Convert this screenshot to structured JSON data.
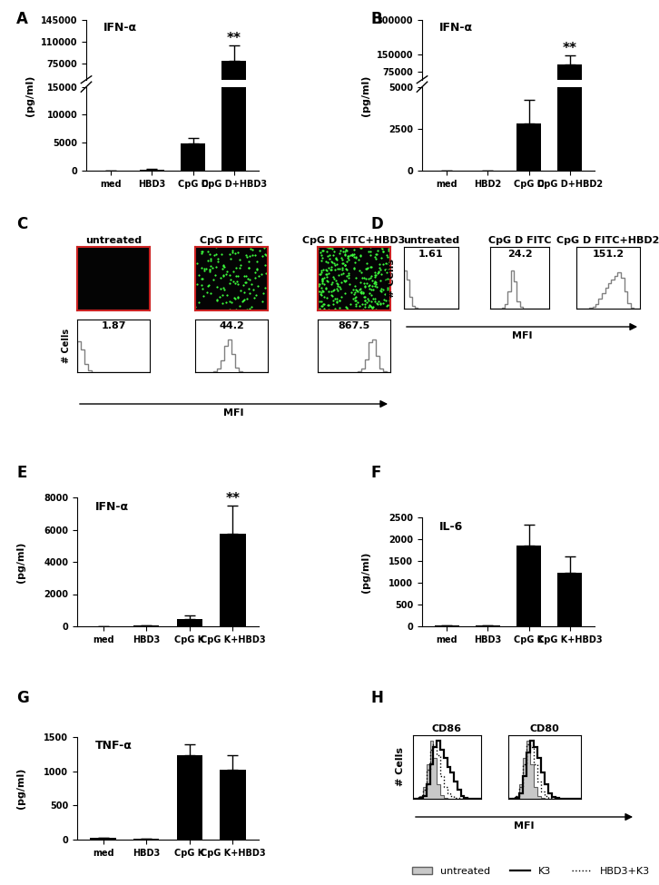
{
  "chart_data": [
    {
      "panel": "A",
      "type": "bar",
      "title": "IFN-α",
      "y_label": "(pg/ml)",
      "categories": [
        "med",
        "HBD3",
        "CpG D",
        "CpG D+HBD3"
      ],
      "values": [
        0,
        200,
        4800,
        80000
      ],
      "errors": [
        0,
        100,
        1100,
        25000
      ],
      "significance": [
        null,
        null,
        null,
        "**"
      ],
      "color": "#000000",
      "segments": [
        {
          "ylim": [
            0,
            15000
          ],
          "yticks": [
            0,
            5000,
            10000,
            15000
          ]
        },
        {
          "ylim": [
            50000,
            145000
          ],
          "yticks": [
            75000,
            110000,
            145000
          ]
        }
      ]
    },
    {
      "panel": "B",
      "type": "bar",
      "title": "IFN-α",
      "y_label": "(pg/ml)",
      "categories": [
        "med",
        "HBD2",
        "CpG D",
        "CpG D+HBD2"
      ],
      "values": [
        0,
        0,
        2800,
        105000
      ],
      "errors": [
        0,
        0,
        1400,
        40000
      ],
      "significance": [
        null,
        null,
        null,
        "**"
      ],
      "color": "#000000",
      "segments": [
        {
          "ylim": [
            0,
            5000
          ],
          "yticks": [
            0,
            2500,
            5000
          ]
        },
        {
          "ylim": [
            40000,
            300000
          ],
          "yticks": [
            75000,
            150000,
            300000
          ]
        }
      ]
    },
    {
      "panel": "C",
      "type": "image_histogram",
      "y_label": "# Cells",
      "x_label": "MFI",
      "log": "x",
      "xlim": [
        1,
        10000
      ],
      "ylim": [
        0,
        160
      ],
      "tick_labels": false,
      "bins": [
        1,
        1.58,
        2.51,
        3.98,
        6.31,
        10,
        15.8,
        25.1,
        39.8,
        63.1,
        100,
        158,
        251,
        398,
        631,
        1000,
        1585,
        2512,
        3981,
        6310,
        10000
      ],
      "plots": [
        {
          "title": "untreated",
          "annotation": "1.87",
          "series": [
            {
              "color": "#808080",
              "line_style": "solid",
              "type": "line",
              "values": [
                95,
                70,
                25,
                6,
                1,
                0,
                0,
                0,
                0,
                0,
                0,
                0,
                0,
                0,
                0,
                0,
                0,
                0,
                0,
                0
              ]
            }
          ]
        },
        {
          "title": "CpG D FITC",
          "annotation": "44.2",
          "series": [
            {
              "color": "#808080",
              "line_style": "solid",
              "type": "line",
              "values": [
                0,
                0,
                0,
                0,
                1,
                3,
                10,
                35,
                80,
                100,
                55,
                15,
                3,
                0,
                0,
                0,
                0,
                0,
                0,
                0
              ]
            }
          ]
        },
        {
          "title": "CpG D FITC+HBD3",
          "annotation": "867.5",
          "series": [
            {
              "color": "#808080",
              "line_style": "solid",
              "type": "line",
              "values": [
                0,
                0,
                0,
                0,
                0,
                0,
                0,
                0,
                0,
                0,
                1,
                3,
                10,
                40,
                90,
                100,
                50,
                12,
                2,
                0
              ]
            }
          ]
        }
      ]
    },
    {
      "panel": "D",
      "type": "histogram",
      "y_label": "# Cells",
      "x_label": "MFI",
      "log": "x",
      "xlim": [
        1,
        10000
      ],
      "ylim": [
        0,
        160
      ],
      "tick_labels": false,
      "bins": [
        1,
        1.58,
        2.51,
        3.98,
        6.31,
        10,
        15.8,
        25.1,
        39.8,
        63.1,
        100,
        158,
        251,
        398,
        631,
        1000,
        1585,
        2512,
        3981,
        6310,
        10000
      ],
      "plots": [
        {
          "title": "untreated",
          "annotation": "1.61",
          "series": [
            {
              "color": "#808080",
              "line_style": "solid",
              "type": "line",
              "values": [
                100,
                75,
                30,
                8,
                2,
                0,
                0,
                0,
                0,
                0,
                0,
                0,
                0,
                0,
                0,
                0,
                0,
                0,
                0,
                0
              ]
            }
          ]
        },
        {
          "title": "CpG D FITC",
          "annotation": "24.2",
          "series": [
            {
              "color": "#808080",
              "line_style": "solid",
              "type": "line",
              "values": [
                0,
                0,
                0,
                1,
                3,
                12,
                45,
                100,
                70,
                20,
                4,
                1,
                0,
                0,
                0,
                0,
                0,
                0,
                0,
                0
              ]
            }
          ]
        },
        {
          "title": "CpG D FITC+HBD2",
          "annotation": "151.2",
          "series": [
            {
              "color": "#808080",
              "line_style": "solid",
              "type": "line",
              "values": [
                0,
                0,
                0,
                1,
                2,
                5,
                12,
                25,
                40,
                55,
                65,
                75,
                85,
                95,
                80,
                45,
                15,
                3,
                0,
                0
              ]
            }
          ]
        }
      ]
    },
    {
      "panel": "E",
      "type": "bar",
      "title": "IFN-α",
      "y_label": "(pg/ml)",
      "categories": [
        "med",
        "HBD3",
        "CpG K",
        "CpG K+HBD3"
      ],
      "values": [
        0,
        30,
        450,
        5750
      ],
      "errors": [
        0,
        10,
        200,
        1750
      ],
      "significance": [
        null,
        null,
        null,
        "**"
      ],
      "color": "#000000",
      "ylim": [
        0,
        8000
      ],
      "yticks": [
        0,
        2000,
        4000,
        6000,
        8000
      ]
    },
    {
      "panel": "F",
      "type": "bar",
      "title": "IL-6",
      "y_label": "(pg/ml)",
      "categories": [
        "med",
        "HBD3",
        "CpG K",
        "CpG K+HBD3"
      ],
      "values": [
        20,
        20,
        1850,
        1230
      ],
      "errors": [
        0,
        0,
        480,
        380
      ],
      "color": "#000000",
      "ylim": [
        0,
        2500
      ],
      "yticks": [
        0,
        500,
        1000,
        1500,
        2000,
        2500
      ]
    },
    {
      "panel": "G",
      "type": "bar",
      "title": "TNF-α",
      "y_label": "(pg/ml)",
      "categories": [
        "med",
        "HBD3",
        "CpG K",
        "CpG K+HBD3"
      ],
      "values": [
        20,
        10,
        1230,
        1020
      ],
      "errors": [
        0,
        0,
        160,
        220
      ],
      "color": "#000000",
      "ylim": [
        0,
        1500
      ],
      "yticks": [
        0,
        500,
        1000,
        1500
      ]
    },
    {
      "panel": "H",
      "type": "histogram",
      "y_label": "# Cells",
      "x_label": "MFI",
      "log": "x",
      "xlim": [
        1,
        10000
      ],
      "ylim": [
        0,
        110
      ],
      "tick_labels": false,
      "legend": "lower right",
      "bins": [
        1,
        1.58,
        2.51,
        3.98,
        6.31,
        10,
        15.8,
        25.1,
        39.8,
        63.1,
        100,
        158,
        251,
        398,
        631,
        1000,
        1585,
        2512,
        3981,
        6310,
        10000
      ],
      "plots": [
        {
          "title": "CD86",
          "series": [
            {
              "name": "untreated",
              "color": "#c8c8c8",
              "type": "area",
              "line_style": "solid",
              "values": [
                0,
                1,
                4,
                20,
                60,
                100,
                70,
                25,
                6,
                1,
                0,
                0,
                0,
                0,
                0,
                0,
                0,
                0,
                0,
                0
              ]
            },
            {
              "name": "K3",
              "color": "#000000",
              "type": "line",
              "line_style": "solid",
              "values": [
                0,
                0,
                1,
                5,
                25,
                60,
                90,
                100,
                85,
                70,
                55,
                45,
                30,
                15,
                5,
                1,
                0,
                0,
                0,
                0
              ]
            },
            {
              "name": "HBD3+K3",
              "color": "#000000",
              "type": "line",
              "line_style": "dotted",
              "values": [
                0,
                1,
                3,
                15,
                50,
                85,
                95,
                75,
                40,
                20,
                10,
                5,
                2,
                1,
                0,
                0,
                0,
                0,
                0,
                0
              ]
            }
          ]
        },
        {
          "title": "CD80",
          "series": [
            {
              "name": "untreated",
              "color": "#c8c8c8",
              "type": "area",
              "line_style": "solid",
              "values": [
                0,
                1,
                5,
                25,
                70,
                100,
                60,
                20,
                5,
                1,
                0,
                0,
                0,
                0,
                0,
                0,
                0,
                0,
                0,
                0
              ]
            },
            {
              "name": "K3",
              "color": "#000000",
              "type": "line",
              "line_style": "solid",
              "values": [
                0,
                0,
                2,
                10,
                40,
                80,
                100,
                90,
                70,
                45,
                25,
                10,
                3,
                1,
                0,
                0,
                0,
                0,
                0,
                0
              ]
            },
            {
              "name": "HBD3+K3",
              "color": "#000000",
              "type": "line",
              "line_style": "dotted",
              "values": [
                0,
                1,
                4,
                20,
                60,
                95,
                90,
                60,
                30,
                12,
                4,
                1,
                0,
                0,
                0,
                0,
                0,
                0,
                0,
                0
              ]
            }
          ]
        }
      ]
    }
  ]
}
